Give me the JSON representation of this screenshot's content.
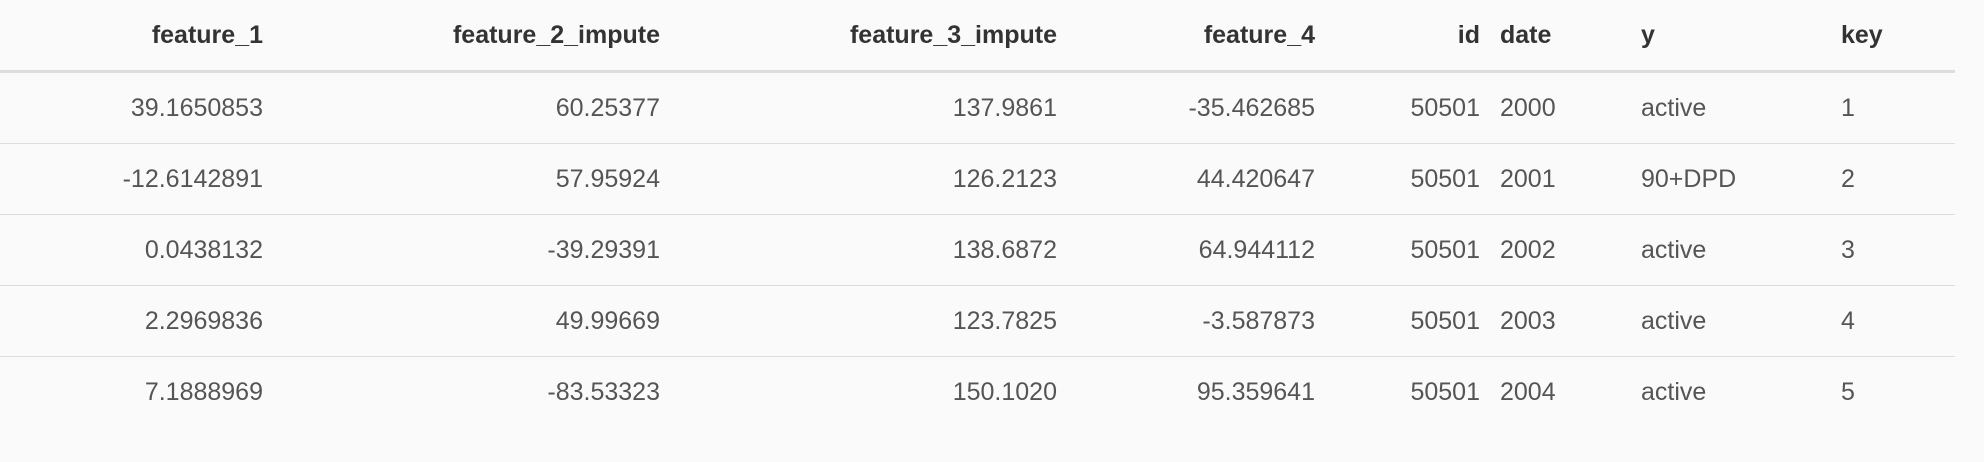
{
  "table": {
    "headers": [
      "feature_1",
      "feature_2_impute",
      "feature_3_impute",
      "feature_4",
      "id",
      "date",
      "y",
      "key"
    ],
    "rows": [
      [
        "39.1650853",
        "60.25377",
        "137.9861",
        "-35.462685",
        "50501",
        "2000",
        "active",
        "1"
      ],
      [
        "-12.6142891",
        "57.95924",
        "126.2123",
        "44.420647",
        "50501",
        "2001",
        "90+DPD",
        "2"
      ],
      [
        "0.0438132",
        "-39.29391",
        "138.6872",
        "64.944112",
        "50501",
        "2002",
        "active",
        "3"
      ],
      [
        "2.2969836",
        "49.99669",
        "123.7825",
        "-3.587873",
        "50501",
        "2003",
        "active",
        "4"
      ],
      [
        "7.1888969",
        "-83.53323",
        "150.1020",
        "95.359641",
        "50501",
        "2004",
        "active",
        "5"
      ]
    ]
  }
}
